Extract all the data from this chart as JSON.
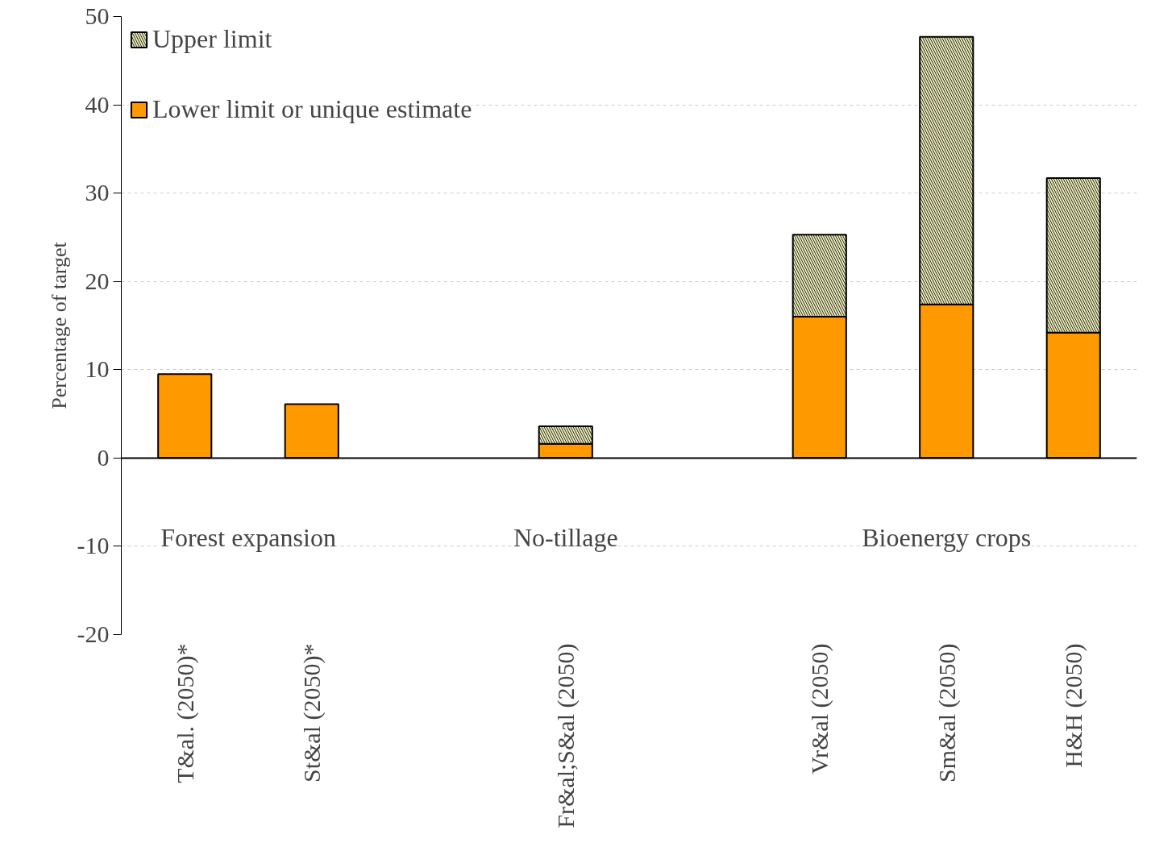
{
  "chart_data": {
    "type": "bar",
    "ylabel": "Percentage of target",
    "categories": [
      "T&al. (2050)*",
      "St&al (2050)*",
      null,
      "Fr&al;S&al (2050)",
      null,
      "Vr&al (2050)",
      "Sm&al (2050)",
      "H&H (2050)"
    ],
    "stacked": true,
    "series": [
      {
        "name": "Lower limit or unique estimate",
        "color": "#ff9900",
        "values": [
          9.5,
          6.1,
          null,
          1.6,
          null,
          16.0,
          17.4,
          14.2
        ]
      },
      {
        "name": "Upper limit",
        "color": "#e6e6b0",
        "values": [
          null,
          null,
          null,
          2.0,
          null,
          9.3,
          30.3,
          17.5
        ]
      }
    ],
    "ylim": [
      -20,
      50
    ],
    "yticks": [
      -20,
      -10,
      0,
      10,
      20,
      30,
      40,
      50
    ],
    "annotations": [
      "Forest expansion",
      "No-tillage",
      "Bioenergy crops"
    ],
    "grid": "y",
    "legend": "top left"
  }
}
